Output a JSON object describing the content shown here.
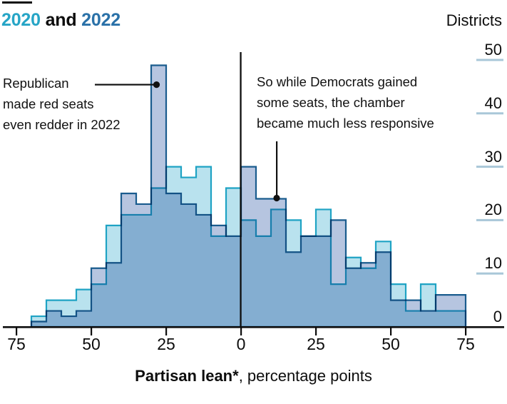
{
  "title": {
    "year1": "2020",
    "and": " and ",
    "year2": "2022",
    "year1_color": "#26a5c6",
    "year2_color": "#2a71a8"
  },
  "right_header": "Districts",
  "annotations": {
    "left": {
      "lines": [
        "Republican",
        "made red seats",
        "even redder in 2022"
      ]
    },
    "right": {
      "lines": [
        "So while Democrats gained",
        "some seats, the chamber",
        "became much less responsive"
      ]
    }
  },
  "caption": {
    "bold": "Partisan lean*",
    "rest": ", percentage points"
  },
  "chart_data": {
    "type": "histogram-step-overlay",
    "title": "2020 and 2022",
    "ylabel": "Districts",
    "xlabel": "Partisan lean*, percentage points",
    "bin_width": 5,
    "bin_start": -70,
    "x_axis_mirrored": true,
    "x_tick_labels": [
      "75",
      "50",
      "25",
      "0",
      "25",
      "50",
      "75"
    ],
    "x_tick_values": [
      -75,
      -50,
      -25,
      0,
      25,
      50,
      75
    ],
    "y_tick_labels": [
      "50",
      "40",
      "30",
      "20",
      "10",
      "0"
    ],
    "y_tick_values": [
      50,
      40,
      30,
      20,
      10,
      0
    ],
    "ylim": [
      0,
      52
    ],
    "grid": "right-stub-ticks",
    "series": [
      {
        "name": "2020",
        "fill": "#b9e2ee",
        "stroke": "#1fa3c4",
        "values": [
          2,
          5,
          5,
          7,
          8,
          19,
          21,
          21,
          26,
          30,
          28,
          30,
          17,
          26,
          20,
          17,
          22,
          20,
          17,
          22,
          8,
          13,
          11,
          16,
          8,
          3,
          8,
          3,
          3
        ]
      },
      {
        "name": "2022",
        "fill": "#b6c5e0",
        "stroke": "#1a5c8e",
        "values": [
          1,
          3,
          2,
          3,
          11,
          12,
          25,
          23,
          49,
          25,
          23,
          21,
          19,
          17,
          30,
          24,
          24,
          14,
          17,
          17,
          20,
          11,
          12,
          14,
          5,
          5,
          3,
          6,
          6
        ]
      }
    ],
    "zero_line": true,
    "axis_color": "#0d0d0d",
    "grid_stub_color": "#a9c7d8"
  }
}
